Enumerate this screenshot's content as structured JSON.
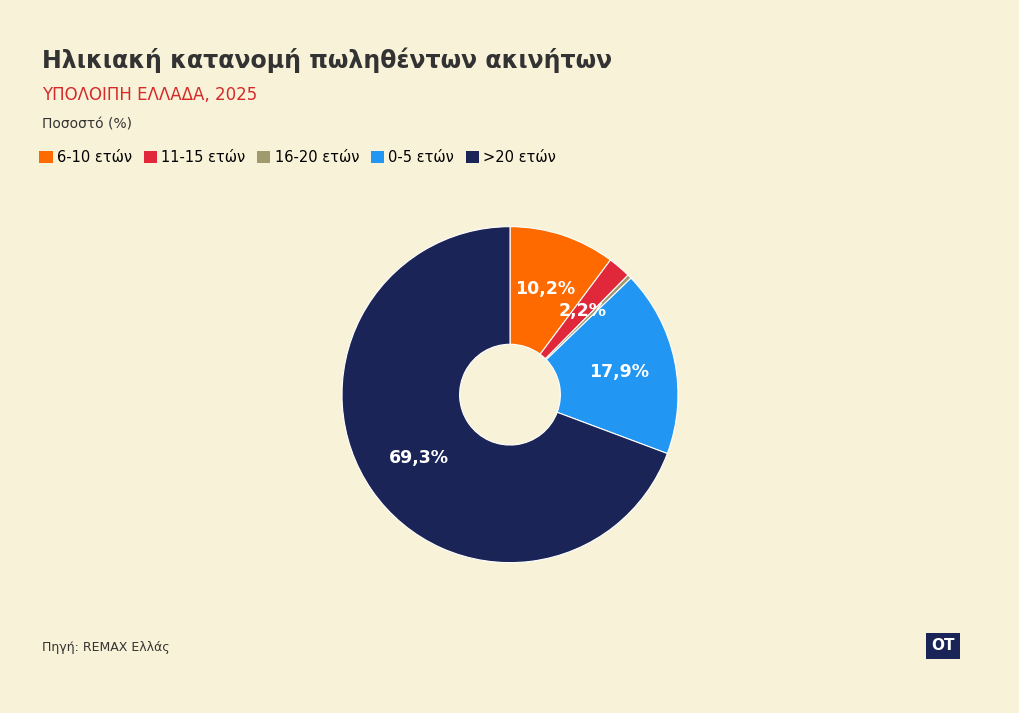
{
  "chart_data": {
    "type": "pie",
    "title": "Ηλικιακή κατανομή πωληθέντων ακινήτων",
    "subtitle": "ΥΠΟΛΟΙΠΗ ΕΛΛΑΔΑ, 2025",
    "unit": "Ποσοστό (%)",
    "categories": [
      "6-10 ετών",
      "11-15 ετών",
      "16-20 ετών",
      "0-5 ετών",
      ">20 ετών"
    ],
    "values": [
      10.2,
      2.2,
      0.4,
      17.9,
      69.3
    ],
    "value_labels": [
      "10,2%",
      "2,2%",
      null,
      "17,9%",
      "69,3%"
    ],
    "colors": [
      "#FF6A00",
      "#E0283A",
      "#A09A6E",
      "#2196F3",
      "#1B2456"
    ],
    "data_labels": true,
    "legend": "upper left",
    "source": "Πηγή: REMAX Ελλάς",
    "brand": "OT"
  }
}
